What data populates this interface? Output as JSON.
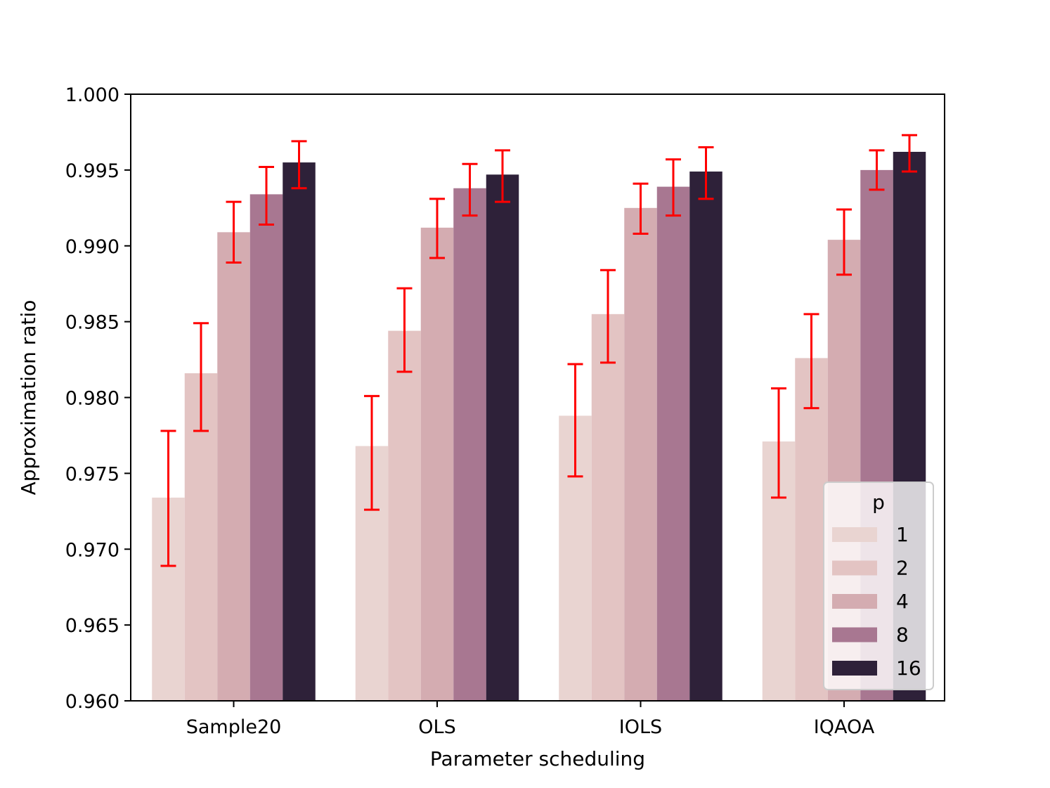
{
  "chart_data": {
    "type": "bar",
    "title": "",
    "xlabel": "Parameter scheduling",
    "ylabel": "Approximation ratio",
    "ylim": [
      0.96,
      1.0
    ],
    "yticks": [
      "0.960",
      "0.965",
      "0.970",
      "0.975",
      "0.980",
      "0.985",
      "0.990",
      "0.995",
      "1.000"
    ],
    "categories": [
      "Sample20",
      "OLS",
      "IOLS",
      "IQAOA"
    ],
    "legend": {
      "title": "p",
      "position": "lower-right"
    },
    "error_bar_color": "#ff0000",
    "series": [
      {
        "name": "1",
        "color": "#e9d4d1",
        "values": [
          0.9734,
          0.9768,
          0.9788,
          0.9771
        ],
        "err_low": [
          0.9689,
          0.9726,
          0.9748,
          0.9734
        ],
        "err_high": [
          0.9778,
          0.9801,
          0.9822,
          0.9806
        ]
      },
      {
        "name": "2",
        "color": "#e3c4c3",
        "values": [
          0.9816,
          0.9844,
          0.9855,
          0.9826
        ],
        "err_low": [
          0.9778,
          0.9817,
          0.9823,
          0.9793
        ],
        "err_high": [
          0.9849,
          0.9872,
          0.9884,
          0.9855
        ]
      },
      {
        "name": "4",
        "color": "#d4acb1",
        "values": [
          0.9909,
          0.9912,
          0.9925,
          0.9904
        ],
        "err_low": [
          0.9889,
          0.9892,
          0.9908,
          0.9881
        ],
        "err_high": [
          0.9929,
          0.9931,
          0.9941,
          0.9924
        ]
      },
      {
        "name": "8",
        "color": "#a87791",
        "values": [
          0.9934,
          0.9938,
          0.9939,
          0.995
        ],
        "err_low": [
          0.9914,
          0.992,
          0.992,
          0.9937
        ],
        "err_high": [
          0.9952,
          0.9954,
          0.9957,
          0.9963
        ]
      },
      {
        "name": "16",
        "color": "#2e2139",
        "values": [
          0.9955,
          0.9947,
          0.9949,
          0.9962
        ],
        "err_low": [
          0.9938,
          0.9929,
          0.9931,
          0.9949
        ],
        "err_high": [
          0.9969,
          0.9963,
          0.9965,
          0.9973
        ]
      }
    ]
  }
}
